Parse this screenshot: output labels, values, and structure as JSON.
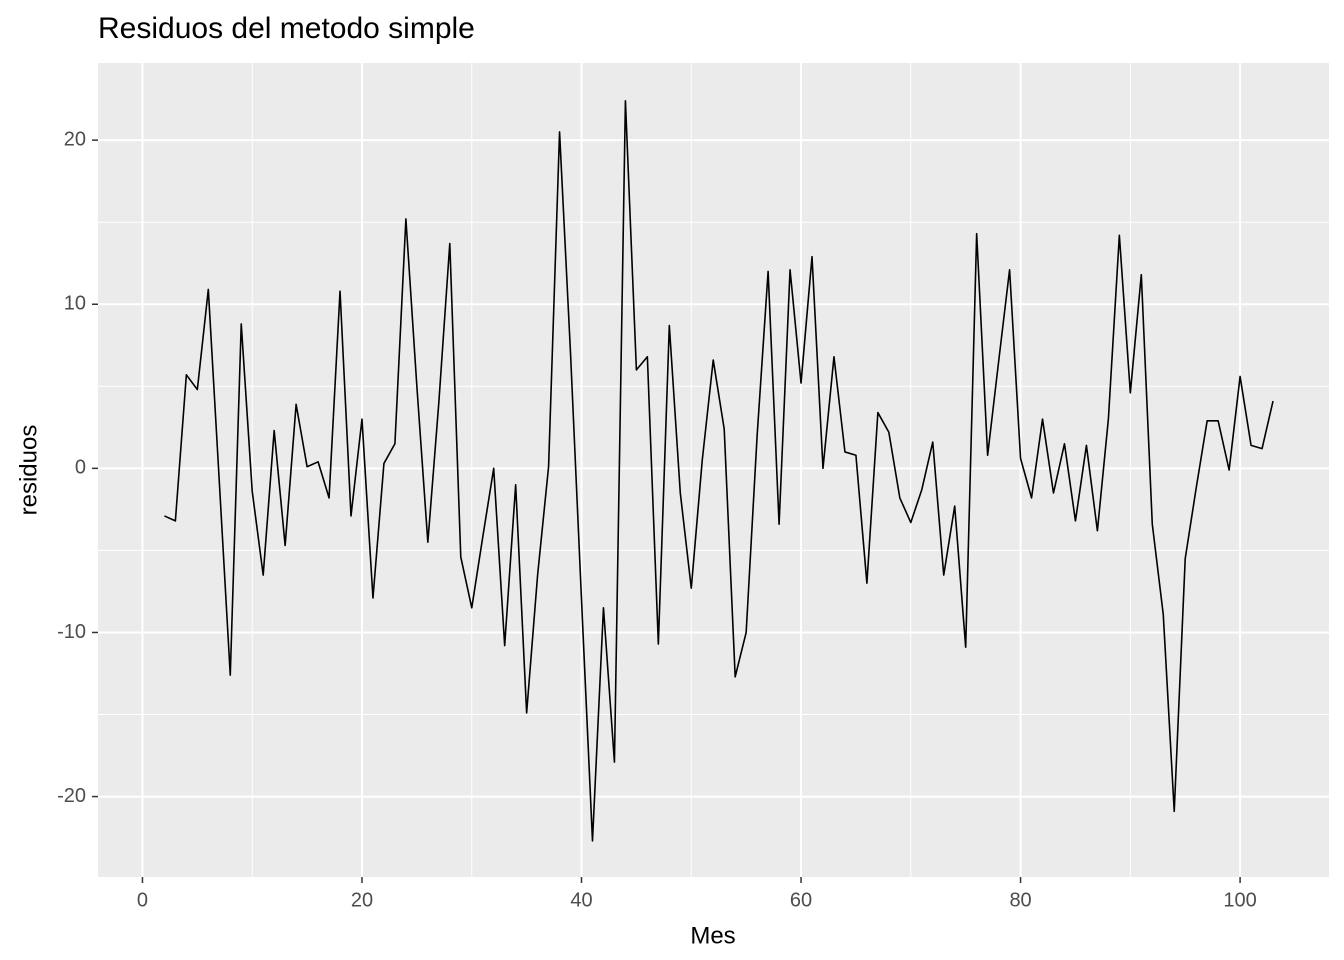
{
  "chart_data": {
    "type": "line",
    "title": "Residuos del metodo simple",
    "x_label": "Mes",
    "y_label": "residuos",
    "x": [
      2,
      3,
      4,
      5,
      6,
      7,
      8,
      9,
      10,
      11,
      12,
      13,
      14,
      15,
      16,
      17,
      18,
      19,
      20,
      21,
      22,
      23,
      24,
      25,
      26,
      27,
      28,
      29,
      30,
      31,
      32,
      33,
      34,
      35,
      36,
      37,
      38,
      39,
      40,
      41,
      42,
      43,
      44,
      45,
      46,
      47,
      48,
      49,
      50,
      51,
      52,
      53,
      54,
      55,
      56,
      57,
      58,
      59,
      60,
      61,
      62,
      63,
      64,
      65,
      66,
      67,
      68,
      69,
      70,
      71,
      72,
      73,
      74,
      75,
      76,
      77,
      78,
      79,
      80,
      81,
      82,
      83,
      84,
      85,
      86,
      87,
      88,
      89,
      90,
      91,
      92,
      93,
      94,
      95,
      96,
      97,
      98,
      99,
      100,
      101,
      102,
      103
    ],
    "series": [
      {
        "color": "#000000",
        "values": [
          -2.9,
          -3.2,
          5.7,
          4.8,
          10.9,
          -0.8,
          -12.6,
          8.8,
          -1.4,
          -6.5,
          2.3,
          -4.7,
          3.9,
          0.1,
          0.4,
          -1.8,
          10.8,
          -2.9,
          3.0,
          -7.9,
          0.3,
          1.5,
          15.2,
          5.0,
          -4.5,
          4.0,
          13.7,
          -5.4,
          -8.5,
          -4.2,
          0,
          -10.8,
          -1.0,
          -14.9,
          -6.5,
          0.1,
          20.5,
          7.0,
          -8.0,
          -22.7,
          -8.5,
          -17.9,
          22.4,
          6.0,
          6.8,
          -10.7,
          8.7,
          -1.5,
          -7.3,
          0.5,
          6.6,
          2.4,
          -12.7,
          -10.0,
          2.0,
          12.0,
          -3.4,
          12.1,
          5.2,
          12.9,
          0,
          6.8,
          1.0,
          0.8,
          -7.0,
          3.4,
          2.2,
          -1.8,
          -3.3,
          -1.3,
          1.6,
          -6.5,
          -2.3,
          -10.9,
          14.3,
          0.8,
          6.5,
          12.1,
          0.6,
          -1.8,
          3.0,
          -1.5,
          1.5,
          -3.2,
          1.4,
          -3.8,
          3.0,
          14.2,
          4.6,
          11.8,
          -3.4,
          -8.9,
          -20.9,
          -5.5,
          -1.2,
          2.9,
          2.9,
          -0.1,
          5.6,
          1.4,
          1.2,
          4.1
        ]
      }
    ],
    "xlim": [
      -4.05,
      108.1
    ],
    "ylim": [
      -24.9,
      24.7
    ],
    "xticks": [
      0,
      20,
      40,
      60,
      80,
      100
    ],
    "yticks": [
      -20,
      -10,
      0,
      10,
      20
    ],
    "grid": true,
    "panel_color": "#ebebeb",
    "grid_color": "#ffffff"
  }
}
